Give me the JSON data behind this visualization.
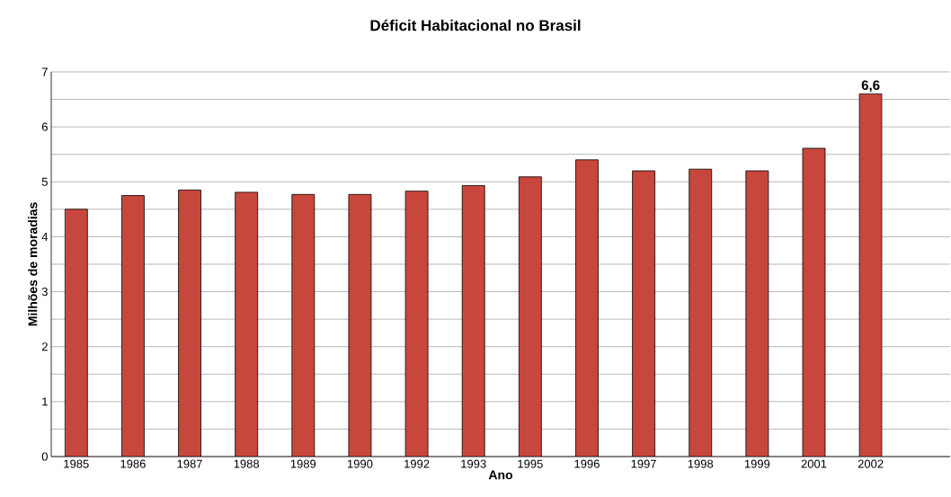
{
  "chart_data": {
    "type": "bar",
    "title": "Déficit Habitacional no Brasil",
    "xlabel": "Ano",
    "ylabel": "Milhões de moradias",
    "categories": [
      "1985",
      "1986",
      "1987",
      "1988",
      "1989",
      "1990",
      "1992",
      "1993",
      "1995",
      "1996",
      "1997",
      "1998",
      "1999",
      "2001",
      "2002"
    ],
    "values": [
      4.5,
      4.75,
      4.85,
      4.81,
      4.77,
      4.77,
      4.83,
      4.93,
      5.09,
      5.4,
      5.2,
      5.23,
      5.2,
      5.61,
      6.6
    ],
    "value_labels": [
      null,
      null,
      null,
      null,
      null,
      null,
      null,
      null,
      null,
      null,
      null,
      null,
      null,
      null,
      "6,6"
    ],
    "color": "#c8473d",
    "ylim": [
      0,
      7
    ],
    "yticks": [
      0,
      {
        "value": 0.5,
        "label": null
      },
      1,
      {
        "value": 1.5,
        "label": null
      },
      2,
      {
        "value": 2.5,
        "label": null
      },
      3,
      {
        "value": 3.5,
        "label": null
      },
      4,
      {
        "value": 4.5,
        "label": null
      },
      5,
      {
        "value": 5.5,
        "label": null
      },
      6,
      {
        "value": 6.5,
        "label": null
      },
      7
    ],
    "grid": "y"
  }
}
